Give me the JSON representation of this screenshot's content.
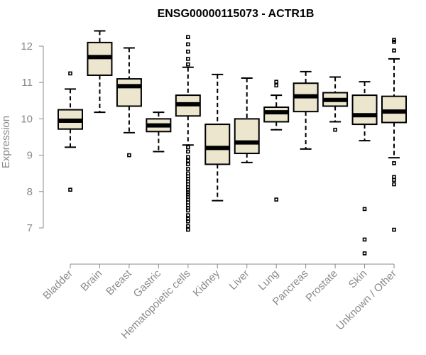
{
  "chart_data": {
    "type": "boxplot",
    "title": "ENSG00000115073 - ACTR1B",
    "xlabel": "",
    "ylabel": "Expression",
    "ylim": [
      6.1,
      12.6
    ],
    "yticks": [
      7,
      8,
      9,
      10,
      11,
      12
    ],
    "box_color": "#ede6cf",
    "categories": [
      "Bladder",
      "Brain",
      "Breast",
      "Gastric",
      "Hematopoietic cells",
      "Kidney",
      "Liver",
      "Lung",
      "Pancreas",
      "Prostate",
      "Skin",
      "Unknown / Other"
    ],
    "boxes": [
      {
        "name": "Bladder",
        "whisker_low": 9.22,
        "q1": 9.72,
        "median": 9.95,
        "q3": 10.25,
        "whisker_high": 10.82,
        "outliers": [
          11.25,
          8.05
        ]
      },
      {
        "name": "Brain",
        "whisker_low": 10.18,
        "q1": 11.2,
        "median": 11.7,
        "q3": 12.1,
        "whisker_high": 12.42,
        "outliers": []
      },
      {
        "name": "Breast",
        "whisker_low": 9.62,
        "q1": 10.35,
        "median": 10.9,
        "q3": 11.1,
        "whisker_high": 11.95,
        "outliers": [
          9.0
        ]
      },
      {
        "name": "Gastric",
        "whisker_low": 9.1,
        "q1": 9.65,
        "median": 9.82,
        "q3": 10.0,
        "whisker_high": 10.18,
        "outliers": []
      },
      {
        "name": "Hematopoietic cells",
        "whisker_low": 9.28,
        "q1": 10.08,
        "median": 10.4,
        "q3": 10.65,
        "whisker_high": 11.42,
        "outliers": [
          12.25,
          12.05,
          11.85,
          11.65,
          11.5,
          9.22,
          9.1,
          8.95,
          8.85,
          8.75,
          8.62,
          8.5,
          8.42,
          8.35,
          8.28,
          8.2,
          8.12,
          8.05,
          7.98,
          7.92,
          7.85,
          7.78,
          7.7,
          7.62,
          7.55,
          7.48,
          7.35,
          7.25,
          7.18,
          7.05,
          6.95
        ]
      },
      {
        "name": "Kidney",
        "whisker_low": 7.75,
        "q1": 8.75,
        "median": 9.2,
        "q3": 9.85,
        "whisker_high": 11.22,
        "outliers": []
      },
      {
        "name": "Liver",
        "whisker_low": 8.8,
        "q1": 9.05,
        "median": 9.35,
        "q3": 10.0,
        "whisker_high": 11.12,
        "outliers": []
      },
      {
        "name": "Lung",
        "whisker_low": 9.7,
        "q1": 9.92,
        "median": 10.18,
        "q3": 10.32,
        "whisker_high": 10.65,
        "outliers": [
          11.02,
          10.92,
          7.78
        ]
      },
      {
        "name": "Pancreas",
        "whisker_low": 9.17,
        "q1": 10.2,
        "median": 10.62,
        "q3": 10.98,
        "whisker_high": 11.3,
        "outliers": []
      },
      {
        "name": "Prostate",
        "whisker_low": 9.92,
        "q1": 10.35,
        "median": 10.52,
        "q3": 10.72,
        "whisker_high": 11.15,
        "outliers": [
          9.7
        ]
      },
      {
        "name": "Skin",
        "whisker_low": 9.4,
        "q1": 9.85,
        "median": 10.1,
        "q3": 10.65,
        "whisker_high": 11.02,
        "outliers": [
          7.52,
          6.68,
          6.3
        ]
      },
      {
        "name": "Unknown / Other",
        "whisker_low": 8.93,
        "q1": 9.9,
        "median": 10.2,
        "q3": 10.62,
        "whisker_high": 11.65,
        "outliers": [
          12.17,
          12.12,
          11.88,
          8.78,
          8.4,
          8.32,
          8.2,
          6.95
        ]
      }
    ]
  }
}
